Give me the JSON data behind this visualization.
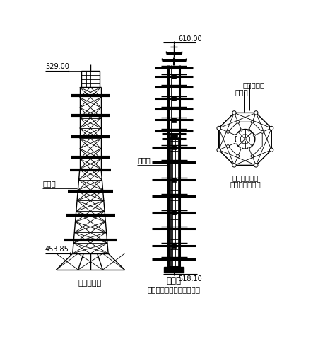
{
  "bg_color": "#ffffff",
  "text_color": "#000000",
  "line_color": "#000000",
  "fig_width": 4.5,
  "fig_height": 4.77,
  "dpi": 100,
  "labels": {
    "left_top": "529.00",
    "left_bottom": "453.85",
    "left_seg": "分段线",
    "left_caption": "综合安装段",
    "mid_top": "610.00",
    "mid_bottom": "518.10",
    "mid_seg": "分段线",
    "mid_caption1": "提升段",
    "mid_caption2": "（套装于综合安装段内部）",
    "right_top": "综合安装段",
    "right_mid": "提升段",
    "right_bot1": "提升段套装于",
    "right_bot2": "综合安装段内部"
  }
}
